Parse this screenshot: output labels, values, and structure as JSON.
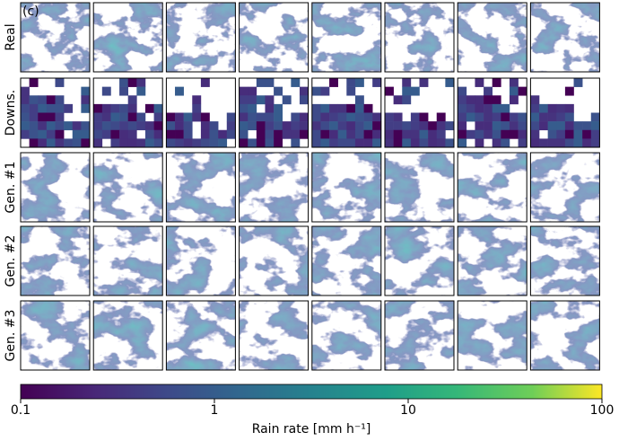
{
  "panel_label": "(c)",
  "row_labels": [
    "Real",
    "Downs.",
    "Gen. #1",
    "Gen. #2",
    "Gen. #3"
  ],
  "colorbar": {
    "label": "Rain rate [mm h⁻¹]",
    "lim": [
      0.1,
      100
    ],
    "ticks": [
      0.1,
      1,
      10,
      100
    ],
    "log": true
  }
}
